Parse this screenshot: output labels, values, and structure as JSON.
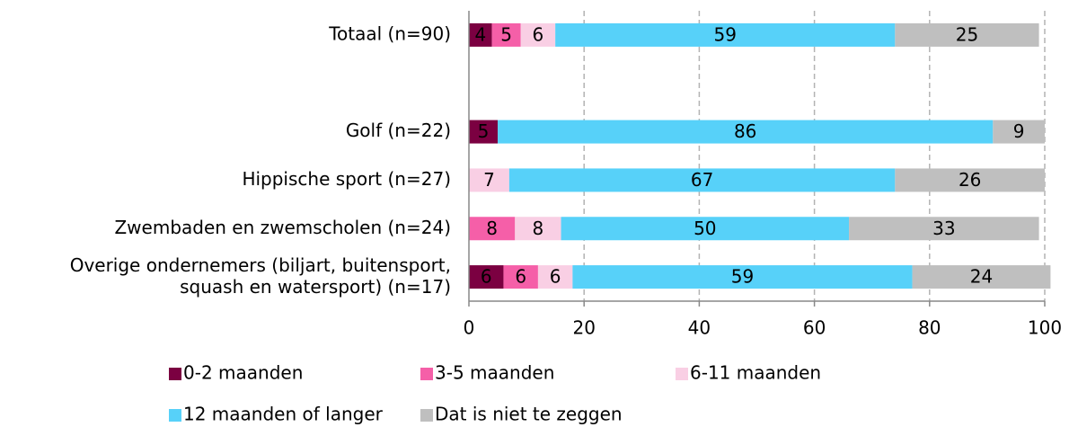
{
  "chart_data": {
    "type": "stacked-barh",
    "categories": [
      "Totaal (n=90)",
      null,
      "Golf (n=22)",
      "Hippische sport (n=27)",
      "Zwembaden en zwemscholen (n=24)",
      "Overige ondernemers (biljart, buitensport,\nsquash en watersport) (n=17)"
    ],
    "series": [
      {
        "name": "0-2 maanden",
        "color": "#7b0041",
        "values": [
          4,
          null,
          5,
          null,
          null,
          6
        ]
      },
      {
        "name": "3-5 maanden",
        "color": "#f55fa8",
        "values": [
          5,
          null,
          null,
          null,
          8,
          6
        ]
      },
      {
        "name": "6-11 maanden",
        "color": "#f9cfe4",
        "values": [
          6,
          null,
          null,
          7,
          8,
          6
        ]
      },
      {
        "name": "12 maanden of langer",
        "color": "#57d1f9",
        "values": [
          59,
          null,
          86,
          67,
          50,
          59
        ]
      },
      {
        "name": "Dat is niet te zeggen",
        "color": "#bfbfbf",
        "values": [
          25,
          null,
          9,
          26,
          33,
          24
        ]
      }
    ],
    "xlim": [
      0,
      100
    ],
    "xticks": [
      0,
      20,
      40,
      60,
      80,
      100
    ],
    "grid": true,
    "legend": "bottom"
  }
}
